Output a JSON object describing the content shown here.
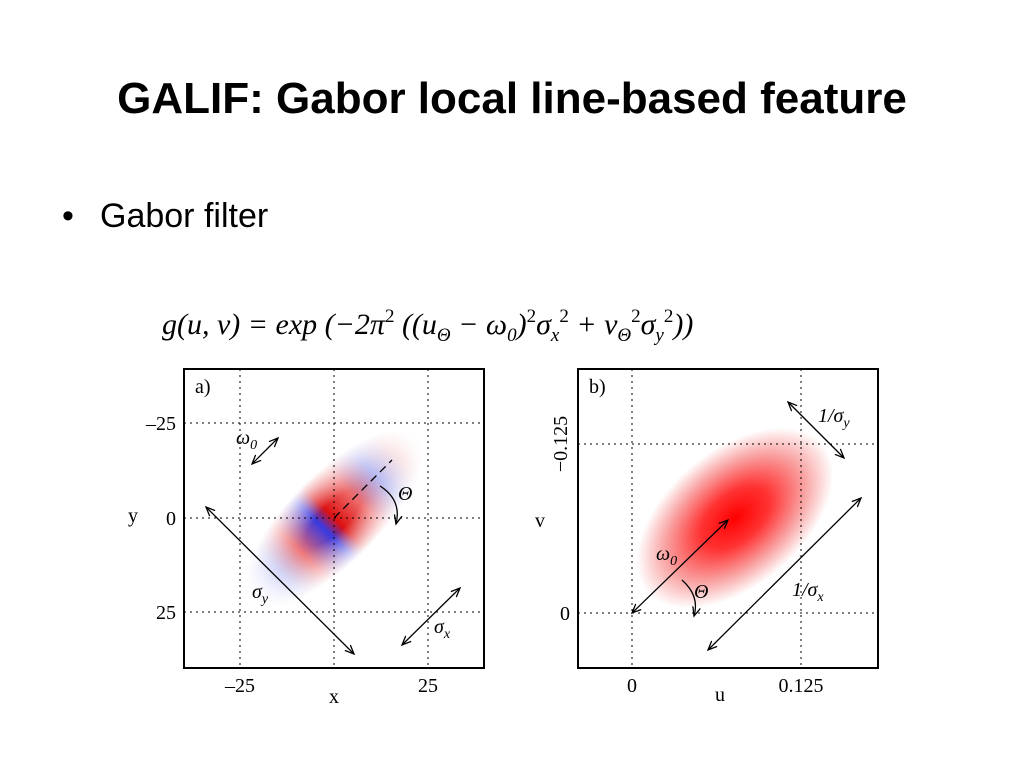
{
  "title": "GALIF: Gabor local line-based feature",
  "bullets": [
    "Gabor filter"
  ],
  "formula": [
    {
      "t": "g(u, v) = exp (−2π"
    },
    {
      "sup": "2"
    },
    {
      "t": " ((u"
    },
    {
      "sub": "Θ"
    },
    {
      "t": " − ω"
    },
    {
      "sub": "0"
    },
    {
      "t": ")"
    },
    {
      "sup": "2"
    },
    {
      "t": "σ"
    },
    {
      "sub": "x"
    },
    {
      "sup": "2"
    },
    {
      "t": " + v"
    },
    {
      "sub": "Θ"
    },
    {
      "sup": "2"
    },
    {
      "t": "σ"
    },
    {
      "sub": "y"
    },
    {
      "sup": "2"
    },
    {
      "t": "))"
    }
  ],
  "panel_a": {
    "label": "a)",
    "xlabel": "x",
    "ylabel": "y",
    "xticks": [
      "–25",
      "25"
    ],
    "yticks": [
      "–25",
      "0",
      "25"
    ],
    "annotations": [
      {
        "t": "ω",
        "sub": "0"
      },
      {
        "t": "Θ"
      },
      {
        "t": "σ",
        "sub": "y"
      },
      {
        "t": "σ",
        "sub": "x"
      }
    ]
  },
  "panel_b": {
    "label": "b)",
    "xlabel": "u",
    "ylabel": "v",
    "xticks": [
      "0",
      "0.125"
    ],
    "yticks": [
      "−0.125",
      "0"
    ],
    "annotations": [
      {
        "t": "1/σ",
        "sub": "y"
      },
      {
        "t": "ω",
        "sub": "0"
      },
      {
        "t": "Θ"
      },
      {
        "t": "1/σ",
        "sub": "x"
      }
    ]
  }
}
